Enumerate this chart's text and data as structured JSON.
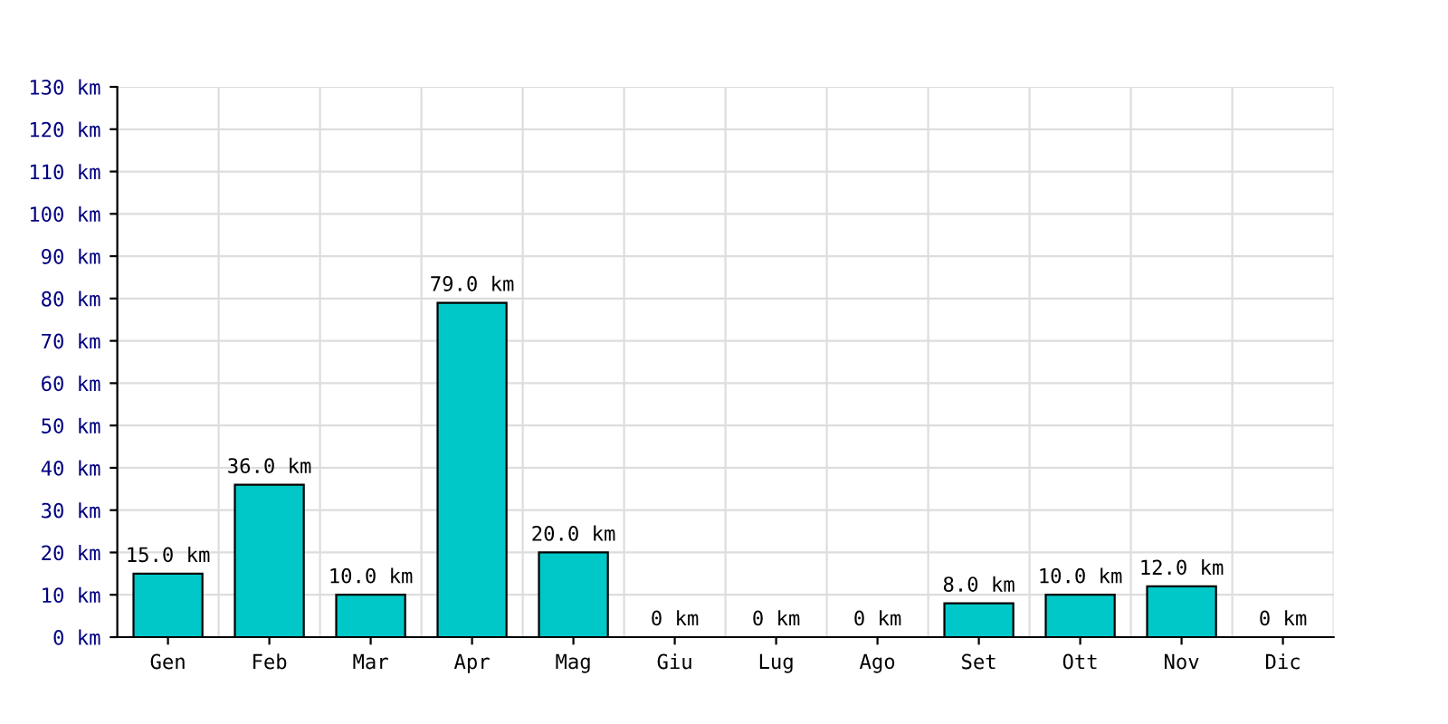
{
  "chart_data": {
    "type": "bar",
    "categories": [
      "Gen",
      "Feb",
      "Mar",
      "Apr",
      "Mag",
      "Giu",
      "Lug",
      "Ago",
      "Set",
      "Ott",
      "Nov",
      "Dic"
    ],
    "values": [
      15.0,
      36.0,
      10.0,
      79.0,
      20.0,
      0,
      0,
      0,
      8.0,
      10.0,
      12.0,
      0
    ],
    "value_labels": [
      "15.0 km",
      "36.0 km",
      "10.0 km",
      "79.0 km",
      "20.0 km",
      "0 km",
      "0 km",
      "0 km",
      "8.0 km",
      "10.0 km",
      "12.0 km",
      "0 km"
    ],
    "color": "#00c8c8",
    "ylim": [
      0,
      130
    ],
    "yticks": [
      {
        "value": 0,
        "label": "0 km"
      },
      {
        "value": 10,
        "label": "10 km"
      },
      {
        "value": 20,
        "label": "20 km"
      },
      {
        "value": 30,
        "label": "30 km"
      },
      {
        "value": 40,
        "label": "40 km"
      },
      {
        "value": 50,
        "label": "50 km"
      },
      {
        "value": 60,
        "label": "60 km"
      },
      {
        "value": 70,
        "label": "70 km"
      },
      {
        "value": 80,
        "label": "80 km"
      },
      {
        "value": 90,
        "label": "90 km"
      },
      {
        "value": 100,
        "label": "100 km"
      },
      {
        "value": 110,
        "label": "110 km"
      },
      {
        "value": 120,
        "label": "120 km"
      },
      {
        "value": 130,
        "label": "130 km"
      }
    ],
    "grid": true
  }
}
